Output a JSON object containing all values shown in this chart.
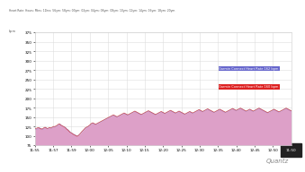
{
  "header_text": "Heart Rate: Hours: Mins: 11hrs: 56ym: 58ym: 00ym: 02ym: 04ym: 06ym: 08ym: 10ym: 12ym: 14ym: 16ym: 18ym: 20ym",
  "legend1_label": "Garmin Connect Heart Rate 162 bpm",
  "legend2_label": "Garmin Connect Heart Rate 160 bpm",
  "legend1_color": "#6666cc",
  "legend2_color": "#dd2222",
  "fill_color": "#dda0c8",
  "line1_color": "#9988cc",
  "line2_color": "#cc3333",
  "bg_color": "#ffffff",
  "grid_color": "#dddddd",
  "watermark": "Quantz",
  "ylim": [
    75,
    375
  ],
  "y_ticks": [
    75,
    100,
    125,
    150,
    175,
    200,
    225,
    250,
    275,
    300,
    325,
    350,
    375
  ],
  "xlim_min": 0,
  "xlim_max": 359,
  "xticklabels": [
    "11:55",
    "11:57",
    "11:59",
    "12:00",
    "12:05",
    "12:10",
    "12:15",
    "12:20",
    "12:25",
    "12:30",
    "12:35",
    "12:40",
    "12:45",
    "12:50",
    "11:50"
  ],
  "last_tick_bg": "#222222",
  "num_points": 360,
  "venu3_values": [
    118,
    118,
    118,
    119,
    120,
    121,
    122,
    121,
    120,
    119,
    118,
    117,
    119,
    121,
    122,
    123,
    121,
    120,
    119,
    120,
    121,
    122,
    121,
    120,
    122,
    123,
    124,
    125,
    124,
    125,
    126,
    127,
    128,
    130,
    131,
    132,
    130,
    128,
    127,
    126,
    125,
    124,
    123,
    122,
    120,
    118,
    117,
    115,
    113,
    111,
    109,
    108,
    107,
    106,
    105,
    104,
    103,
    102,
    101,
    100,
    101,
    102,
    103,
    105,
    107,
    109,
    111,
    113,
    115,
    117,
    119,
    121,
    122,
    123,
    124,
    125,
    127,
    128,
    130,
    132,
    133,
    134,
    133,
    132,
    131,
    130,
    131,
    132,
    133,
    134,
    135,
    136,
    137,
    138,
    139,
    140,
    141,
    142,
    143,
    144,
    145,
    146,
    147,
    148,
    149,
    150,
    151,
    152,
    153,
    154,
    155,
    154,
    153,
    152,
    151,
    150,
    151,
    152,
    153,
    154,
    155,
    156,
    157,
    158,
    159,
    160,
    159,
    158,
    157,
    156,
    155,
    156,
    157,
    158,
    159,
    160,
    161,
    162,
    163,
    164,
    165,
    164,
    163,
    162,
    161,
    160,
    159,
    158,
    157,
    156,
    157,
    158,
    159,
    160,
    161,
    162,
    163,
    164,
    165,
    166,
    165,
    164,
    163,
    162,
    161,
    160,
    159,
    158,
    157,
    156,
    157,
    158,
    159,
    160,
    161,
    162,
    163,
    164,
    163,
    162,
    161,
    160,
    159,
    160,
    161,
    162,
    163,
    164,
    165,
    166,
    167,
    166,
    165,
    164,
    163,
    162,
    161,
    160,
    161,
    162,
    163,
    164,
    165,
    164,
    163,
    162,
    161,
    160,
    159,
    158,
    157,
    158,
    159,
    160,
    161,
    162,
    163,
    164,
    163,
    162,
    161,
    160,
    161,
    162,
    163,
    164,
    165,
    166,
    167,
    168,
    169,
    168,
    167,
    166,
    165,
    164,
    165,
    166,
    167,
    168,
    169,
    170,
    171,
    170,
    169,
    168,
    167,
    166,
    165,
    164,
    163,
    162,
    163,
    164,
    165,
    166,
    167,
    168,
    169,
    170,
    169,
    168,
    167,
    166,
    165,
    164,
    163,
    162,
    163,
    164,
    165,
    166,
    167,
    168,
    169,
    170,
    171,
    172,
    171,
    170,
    169,
    168,
    167,
    168,
    169,
    170,
    171,
    172,
    173,
    172,
    171,
    170,
    169,
    168,
    167,
    166,
    165,
    166,
    167,
    168,
    169,
    170,
    169,
    168,
    167,
    166,
    165,
    166,
    167,
    168,
    169,
    170,
    171,
    172,
    173,
    172,
    171,
    170,
    169,
    168,
    167,
    166,
    165,
    164,
    163,
    162,
    161,
    162,
    163,
    164,
    165,
    166,
    167,
    168,
    169,
    170,
    169,
    168,
    167,
    166,
    165,
    164,
    163,
    164,
    165,
    166,
    167,
    168,
    169,
    170,
    171,
    172,
    173,
    172,
    171,
    170,
    169,
    168,
    167,
    166
  ],
  "coros_values": [
    120,
    120,
    120,
    121,
    122,
    122,
    121,
    120,
    119,
    118,
    119,
    119,
    121,
    122,
    123,
    122,
    121,
    120,
    120,
    121,
    122,
    122,
    121,
    122,
    123,
    124,
    125,
    125,
    125,
    126,
    127,
    128,
    130,
    131,
    132,
    131,
    129,
    128,
    127,
    126,
    125,
    124,
    123,
    121,
    119,
    117,
    116,
    114,
    112,
    110,
    109,
    108,
    107,
    105,
    104,
    103,
    102,
    101,
    100,
    99,
    100,
    101,
    103,
    105,
    107,
    110,
    112,
    114,
    116,
    118,
    120,
    122,
    123,
    124,
    125,
    126,
    128,
    129,
    131,
    133,
    134,
    135,
    134,
    133,
    132,
    131,
    132,
    133,
    134,
    135,
    136,
    137,
    138,
    139,
    140,
    141,
    142,
    143,
    144,
    145,
    146,
    147,
    148,
    149,
    150,
    151,
    152,
    153,
    154,
    155,
    156,
    155,
    154,
    153,
    152,
    151,
    152,
    153,
    154,
    155,
    156,
    157,
    158,
    159,
    160,
    161,
    160,
    159,
    158,
    157,
    156,
    157,
    158,
    159,
    160,
    161,
    162,
    163,
    164,
    165,
    166,
    165,
    164,
    163,
    162,
    161,
    160,
    159,
    158,
    157,
    158,
    159,
    160,
    161,
    162,
    163,
    164,
    165,
    166,
    167,
    166,
    165,
    164,
    163,
    162,
    161,
    160,
    159,
    158,
    157,
    158,
    159,
    160,
    161,
    162,
    163,
    164,
    165,
    164,
    163,
    162,
    161,
    160,
    161,
    162,
    163,
    164,
    165,
    166,
    167,
    168,
    167,
    166,
    165,
    164,
    163,
    162,
    161,
    162,
    163,
    164,
    165,
    166,
    165,
    164,
    163,
    162,
    161,
    160,
    159,
    158,
    159,
    160,
    161,
    162,
    163,
    164,
    165,
    164,
    163,
    162,
    161,
    162,
    163,
    164,
    165,
    166,
    167,
    168,
    169,
    170,
    169,
    168,
    167,
    166,
    165,
    166,
    167,
    168,
    169,
    170,
    171,
    172,
    171,
    170,
    169,
    168,
    167,
    166,
    165,
    164,
    163,
    164,
    165,
    166,
    167,
    168,
    169,
    170,
    171,
    170,
    169,
    168,
    167,
    166,
    165,
    164,
    163,
    164,
    165,
    166,
    167,
    168,
    169,
    170,
    171,
    172,
    173,
    172,
    171,
    170,
    169,
    168,
    169,
    170,
    171,
    172,
    173,
    174,
    173,
    172,
    171,
    170,
    169,
    168,
    167,
    166,
    167,
    168,
    169,
    170,
    171,
    170,
    169,
    168,
    167,
    166,
    167,
    168,
    169,
    170,
    171,
    172,
    173,
    174,
    173,
    172,
    171,
    170,
    169,
    168,
    167,
    166,
    165,
    164,
    163,
    162,
    163,
    164,
    165,
    166,
    167,
    168,
    169,
    170,
    171,
    170,
    169,
    168,
    167,
    166,
    165,
    164,
    165,
    166,
    167,
    168,
    169,
    170,
    171,
    172,
    173,
    174,
    173,
    172,
    171,
    170,
    169,
    168,
    167
  ]
}
